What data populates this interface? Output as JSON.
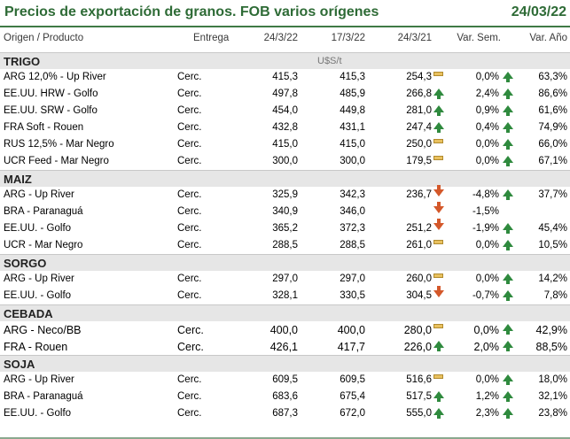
{
  "title": "Precios de exportación de granos. FOB varios orígenes",
  "date": "24/03/22",
  "headers": {
    "origin": "Origen / Producto",
    "delivery": "Entrega",
    "d1": "24/3/22",
    "d2": "17/3/22",
    "d3": "24/3/21",
    "week": "Var. Sem.",
    "year": "Var. Año"
  },
  "unit": "U$S/t",
  "sections": [
    {
      "name": "TRIGO",
      "rows": [
        {
          "name": "ARG 12,0% - Up River",
          "delivery": "Cerc.",
          "v1": "415,3",
          "v2": "415,3",
          "v3": "254,3",
          "ws": "0,0%",
          "ya": "63,3%",
          "i1": "neutral",
          "i2": "up"
        },
        {
          "name": "EE.UU. HRW - Golfo",
          "delivery": "Cerc.",
          "v1": "497,8",
          "v2": "485,9",
          "v3": "266,8",
          "ws": "2,4%",
          "ya": "86,6%",
          "i1": "up",
          "i2": "up"
        },
        {
          "name": "EE.UU. SRW - Golfo",
          "delivery": "Cerc.",
          "v1": "454,0",
          "v2": "449,8",
          "v3": "281,0",
          "ws": "0,9%",
          "ya": "61,6%",
          "i1": "up",
          "i2": "up"
        },
        {
          "name": "FRA Soft - Rouen",
          "delivery": "Cerc.",
          "v1": "432,8",
          "v2": "431,1",
          "v3": "247,4",
          "ws": "0,4%",
          "ya": "74,9%",
          "i1": "up",
          "i2": "up"
        },
        {
          "name": "RUS 12,5% - Mar Negro",
          "delivery": "Cerc.",
          "v1": "415,0",
          "v2": "415,0",
          "v3": "250,0",
          "ws": "0,0%",
          "ya": "66,0%",
          "i1": "neutral",
          "i2": "up"
        },
        {
          "name": "UCR Feed - Mar Negro",
          "delivery": "Cerc.",
          "v1": "300,0",
          "v2": "300,0",
          "v3": "179,5",
          "ws": "0,0%",
          "ya": "67,1%",
          "i1": "neutral",
          "i2": "up"
        }
      ]
    },
    {
      "name": "MAIZ",
      "rows": [
        {
          "name": "ARG - Up River",
          "delivery": "Cerc.",
          "v1": "325,9",
          "v2": "342,3",
          "v3": "236,7",
          "ws": "-4,8%",
          "ya": "37,7%",
          "i1": "down",
          "i2": "up"
        },
        {
          "name": "BRA - Paranaguá",
          "delivery": "Cerc.",
          "v1": "340,9",
          "v2": "346,0",
          "v3": "",
          "ws": "-1,5%",
          "ya": "",
          "i1": "down",
          "i2": ""
        },
        {
          "name": "EE.UU. - Golfo",
          "delivery": "Cerc.",
          "v1": "365,2",
          "v2": "372,3",
          "v3": "251,2",
          "ws": "-1,9%",
          "ya": "45,4%",
          "i1": "down",
          "i2": "up"
        },
        {
          "name": "UCR - Mar Negro",
          "delivery": "Cerc.",
          "v1": "288,5",
          "v2": "288,5",
          "v3": "261,0",
          "ws": "0,0%",
          "ya": "10,5%",
          "i1": "neutral",
          "i2": "up"
        }
      ]
    },
    {
      "name": "SORGO",
      "rows": [
        {
          "name": "ARG - Up River",
          "delivery": "Cerc.",
          "v1": "297,0",
          "v2": "297,0",
          "v3": "260,0",
          "ws": "0,0%",
          "ya": "14,2%",
          "i1": "neutral",
          "i2": "up"
        },
        {
          "name": "EE.UU. - Golfo",
          "delivery": "Cerc.",
          "v1": "328,1",
          "v2": "330,5",
          "v3": "304,5",
          "ws": "-0,7%",
          "ya": "7,8%",
          "i1": "down",
          "i2": "up"
        }
      ]
    },
    {
      "name": "CEBADA",
      "big": true,
      "rows": [
        {
          "name": "ARG - Neco/BB",
          "delivery": "Cerc.",
          "v1": "400,0",
          "v2": "400,0",
          "v3": "280,0",
          "ws": "0,0%",
          "ya": "42,9%",
          "i1": "neutral",
          "i2": "up"
        },
        {
          "name": "FRA - Rouen",
          "delivery": "Cerc.",
          "v1": "426,1",
          "v2": "417,7",
          "v3": "226,0",
          "ws": "2,0%",
          "ya": "88,5%",
          "i1": "up",
          "i2": "up"
        }
      ]
    },
    {
      "name": "SOJA",
      "rows": [
        {
          "name": "ARG - Up River",
          "delivery": "Cerc.",
          "v1": "609,5",
          "v2": "609,5",
          "v3": "516,6",
          "ws": "0,0%",
          "ya": "18,0%",
          "i1": "neutral",
          "i2": "up"
        },
        {
          "name": "BRA - Paranaguá",
          "delivery": "Cerc.",
          "v1": "683,6",
          "v2": "675,4",
          "v3": "517,5",
          "ws": "1,2%",
          "ya": "32,1%",
          "i1": "up",
          "i2": "up"
        },
        {
          "name": "EE.UU. - Golfo",
          "delivery": "Cerc.",
          "v1": "687,3",
          "v2": "672,0",
          "v3": "555,0",
          "ws": "2,3%",
          "ya": "23,8%",
          "i1": "up",
          "i2": "up"
        }
      ]
    }
  ]
}
